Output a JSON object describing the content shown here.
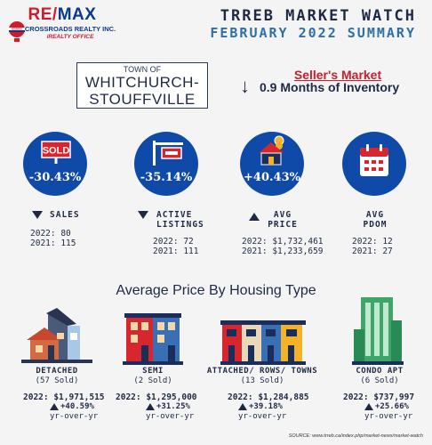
{
  "logo": {
    "part1": "RE/",
    "part2": "MAX",
    "company": "CROSSROADS REALTY INC.",
    "office": "iREALTY OFFICE",
    "balloon_text": "RE/MAX"
  },
  "header": {
    "line1": "TRREB MARKET WATCH",
    "line2": "FEBRUARY 2022 SUMMARY"
  },
  "town": {
    "prefix": "TOWN OF",
    "name_line1": "WHITCHURCH-",
    "name_line2": "STOUFFVILLE"
  },
  "market": {
    "type": "Seller's Market",
    "arrow": "↓",
    "inventory": "0.9 Months of Inventory"
  },
  "stats": [
    {
      "circle_value": "-30.43%",
      "icon": "sold-sign-icon",
      "icon_text": "SOLD",
      "direction": "down",
      "label1": "SALES",
      "label2": "",
      "line1": "2022:  80",
      "line2": "2021: 115"
    },
    {
      "circle_value": "-35.14%",
      "icon": "listing-sign-icon",
      "direction": "down",
      "label1": "ACTIVE",
      "label2": "LISTINGS",
      "line1": "2022:  72",
      "line2": "2021: 111"
    },
    {
      "circle_value": "+40.43%",
      "icon": "house-coins-icon",
      "direction": "up",
      "label1": "AVG",
      "label2": "PRICE",
      "line1": "2022: $1,732,461",
      "line2": "2021: $1,233,659"
    },
    {
      "icon": "calendar-icon",
      "direction": "none",
      "label1": "AVG",
      "label2": "PDOM",
      "line1": "2022: 12",
      "line2": "2021: 27"
    }
  ],
  "section_title": "Average Price By Housing Type",
  "housing": [
    {
      "icon": "detached-house-icon",
      "name": "DETACHED",
      "sold": "(57 Sold)",
      "price": "2022: $1,971,515",
      "change": "+40.59%",
      "yoy": "yr-over-yr"
    },
    {
      "icon": "semi-house-icon",
      "name": "SEMI",
      "sold": "(2 Sold)",
      "price": "2022: $1,295,000",
      "change": "+31.25%",
      "yoy": "yr-over-yr"
    },
    {
      "icon": "townhouse-icon",
      "name": "ATTACHED/ ROWS/ TOWNS",
      "sold": "(13 Sold)",
      "price": "2022: $1,284,885",
      "change": "+39.18%",
      "yoy": "yr-over-yr"
    },
    {
      "icon": "condo-tower-icon",
      "name": "CONDO APT",
      "sold": "(6 Sold)",
      "price": "2022: $737,997",
      "change": "+25.66%",
      "yoy": "yr-over-yr"
    }
  ],
  "source": "SOURCE:  www.trreb.ca/index.php/market-news/market-watch",
  "colors": {
    "accent_blue": "#0f4aa8",
    "accent_red": "#c71f2c",
    "text_navy": "#1e2a44"
  }
}
